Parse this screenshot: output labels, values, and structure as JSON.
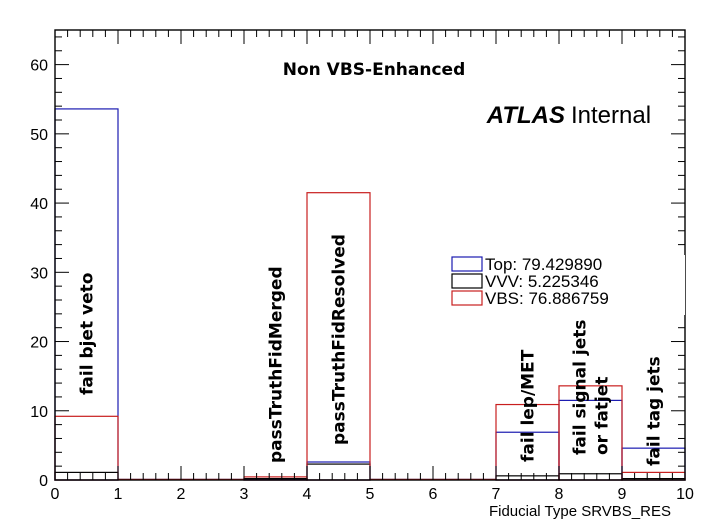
{
  "chart_data": {
    "type": "histogram",
    "title": "Non VBS-Enhanced",
    "xlabel": "Fiducial Type SRVBS_RES",
    "ylabel": "",
    "xlim": [
      0,
      10
    ],
    "ylim": [
      0,
      65
    ],
    "x_ticks": [
      "0",
      "1",
      "2",
      "3",
      "4",
      "5",
      "6",
      "7",
      "8",
      "9",
      "10"
    ],
    "y_ticks": [
      "0",
      "10",
      "20",
      "30",
      "40",
      "50",
      "60"
    ],
    "bin_edges": [
      0,
      1,
      2,
      3,
      4,
      5,
      6,
      7,
      8,
      9,
      10
    ],
    "series": [
      {
        "name": "Top",
        "color": "#1a1ab0",
        "values": [
          53.6,
          0,
          0,
          0.15,
          2.6,
          0,
          0,
          6.9,
          11.5,
          4.6
        ]
      },
      {
        "name": "VVV",
        "color": "#000000",
        "values": [
          1.1,
          0,
          0,
          0.2,
          2.3,
          0,
          0,
          0.6,
          0.9,
          0.2
        ]
      },
      {
        "name": "VBS",
        "color": "#c81e1e",
        "values": [
          9.2,
          0,
          0,
          0.45,
          41.5,
          0,
          0,
          10.9,
          13.6,
          1.1
        ]
      }
    ],
    "legend": {
      "position": "right",
      "entries": [
        "Top: 79.429890",
        "VVV: 5.225346",
        "VBS: 76.886759"
      ]
    },
    "annotations": {
      "atlas_bold": "ATLAS",
      "atlas_plain": "Internal",
      "bin_labels": [
        {
          "bin": 0,
          "text": "fail bjet veto",
          "lines": [
            "fail bjet veto"
          ]
        },
        {
          "bin": 3,
          "text": "passTruthFidMerged",
          "lines": [
            "passTruthFidMerged"
          ]
        },
        {
          "bin": 4,
          "text": "passTruthFidResolved",
          "lines": [
            "passTruthFidResolved"
          ]
        },
        {
          "bin": 7,
          "text": "fail lep/MET",
          "lines": [
            "fail lep/MET"
          ]
        },
        {
          "bin": 8,
          "text": "fail signal jets or fatjet",
          "lines": [
            "fail signal jets",
            "or fatjet"
          ]
        },
        {
          "bin": 9,
          "text": "fail tag jets",
          "lines": [
            "fail tag jets"
          ]
        }
      ]
    }
  }
}
